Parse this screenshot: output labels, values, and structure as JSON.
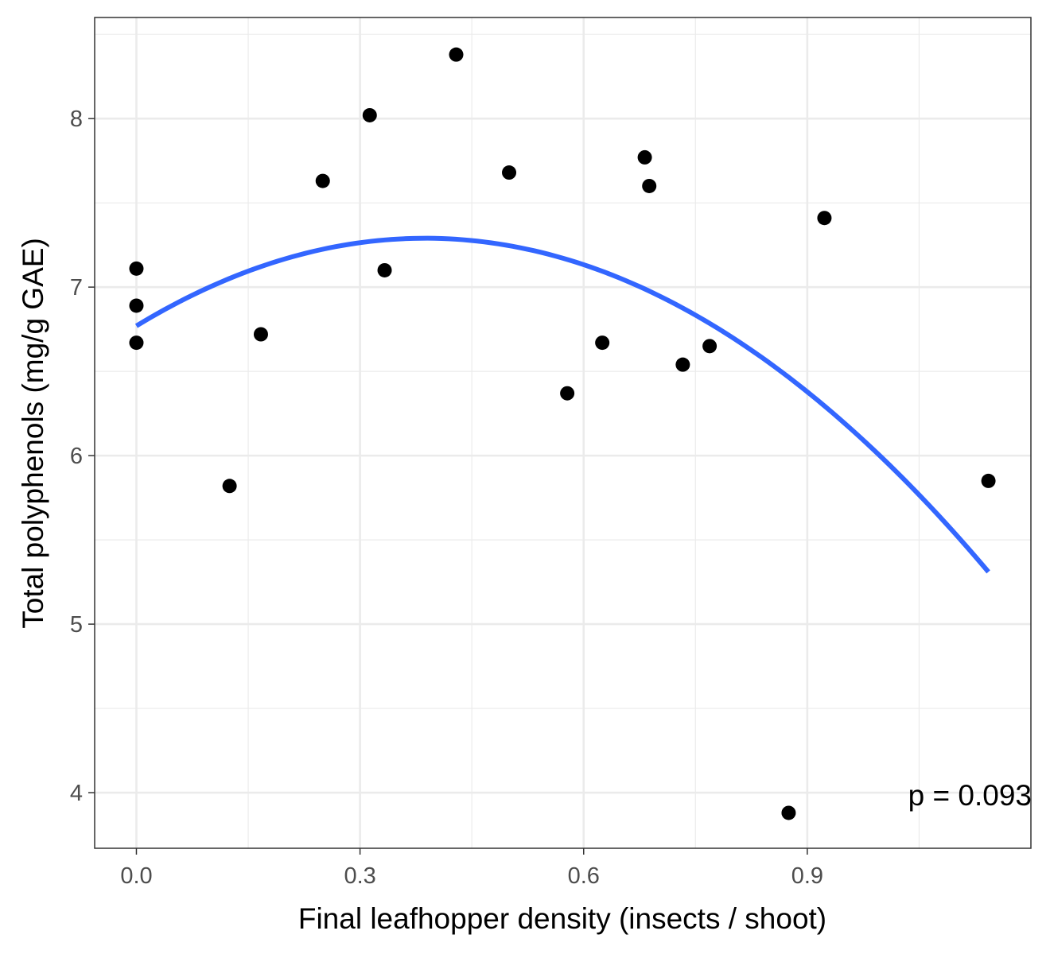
{
  "chart_data": {
    "type": "scatter",
    "xlabel": "Final leafhopper density (insects / shoot)",
    "ylabel": "Total polyphenols (mg/g GAE)",
    "xlim": [
      -0.056,
      1.2
    ],
    "ylim": [
      3.67,
      8.6
    ],
    "x_ticks": [
      0.0,
      0.3,
      0.6,
      0.9
    ],
    "x_tick_labels": [
      "0.0",
      "0.3",
      "0.6",
      "0.9"
    ],
    "y_ticks": [
      4,
      5,
      6,
      7,
      8
    ],
    "y_tick_labels": [
      "4",
      "5",
      "6",
      "7",
      "8"
    ],
    "grid": true,
    "annotation": "p = 0.093",
    "colors": {
      "points": "#000000",
      "fit": "#3366ff",
      "grid": "#ebebeb",
      "panel_border": "#333333"
    },
    "points": [
      {
        "x": 0.0,
        "y": 7.11
      },
      {
        "x": 0.0,
        "y": 6.89
      },
      {
        "x": 0.0,
        "y": 6.67
      },
      {
        "x": 0.125,
        "y": 5.82
      },
      {
        "x": 0.167,
        "y": 6.72
      },
      {
        "x": 0.25,
        "y": 7.63
      },
      {
        "x": 0.313,
        "y": 8.02
      },
      {
        "x": 0.333,
        "y": 7.1
      },
      {
        "x": 0.429,
        "y": 8.38
      },
      {
        "x": 0.5,
        "y": 7.68
      },
      {
        "x": 0.578,
        "y": 6.37
      },
      {
        "x": 0.625,
        "y": 6.67
      },
      {
        "x": 0.682,
        "y": 7.77
      },
      {
        "x": 0.688,
        "y": 7.6
      },
      {
        "x": 0.733,
        "y": 6.54
      },
      {
        "x": 0.769,
        "y": 6.65
      },
      {
        "x": 0.875,
        "y": 3.88
      },
      {
        "x": 0.923,
        "y": 7.41
      },
      {
        "x": 1.143,
        "y": 5.85
      }
    ],
    "fit": {
      "type": "quadratic",
      "x": [
        0.0,
        0.39,
        1.143
      ],
      "y": [
        6.77,
        7.29,
        5.31
      ]
    }
  }
}
